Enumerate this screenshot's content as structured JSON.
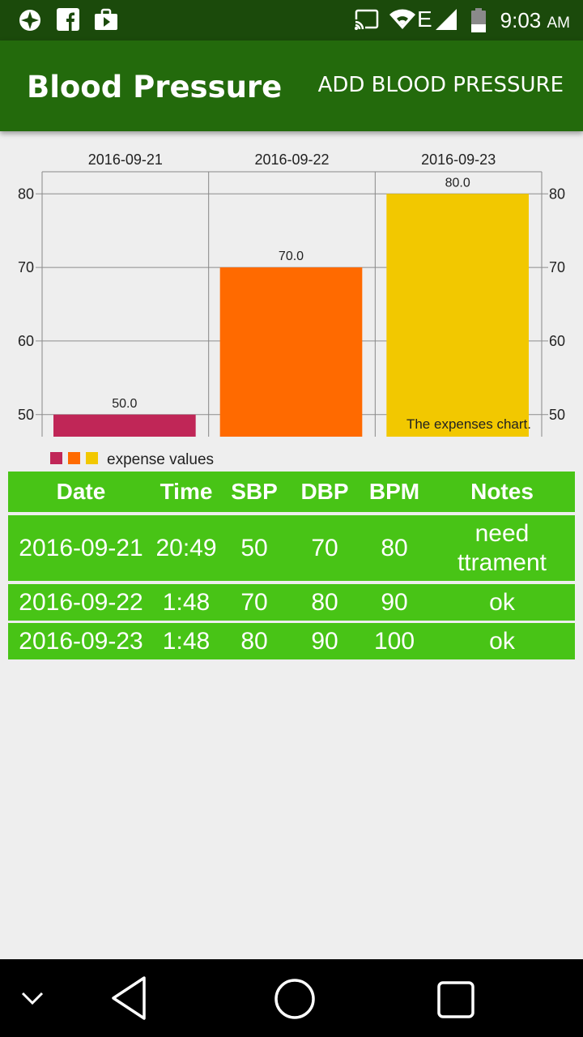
{
  "status_bar": {
    "time": "9:03",
    "ampm": "AM",
    "network": "E"
  },
  "app_bar": {
    "title": "Blood Pressure",
    "action_label": "ADD BLOOD PRESSURE"
  },
  "chart_data": {
    "type": "bar",
    "categories": [
      "2016-09-21",
      "2016-09-22",
      "2016-09-23"
    ],
    "values": [
      50.0,
      70.0,
      80.0
    ],
    "value_labels": [
      "50.0",
      "70.0",
      "80.0"
    ],
    "colors": [
      "#c02657",
      "#ff6a00",
      "#f2c800"
    ],
    "ylim": [
      47,
      83
    ],
    "yticks": [
      "50",
      "60",
      "70",
      "80"
    ],
    "ytick_values": [
      50,
      60,
      70,
      80
    ],
    "description": "The expenses chart.",
    "legend_label": "expense values",
    "grid": true
  },
  "table": {
    "headers": [
      "Date",
      "Time",
      "SBP",
      "DBP",
      "BPM",
      "Notes"
    ],
    "rows": [
      [
        "2016-09-21",
        "20:49",
        "50",
        "70",
        "80",
        "need ttrament"
      ],
      [
        "2016-09-22",
        "1:48",
        "70",
        "80",
        "90",
        "ok"
      ],
      [
        "2016-09-23",
        "1:48",
        "80",
        "90",
        "100",
        "ok"
      ]
    ],
    "row_color": "#48c416"
  },
  "colors": {
    "status_bar": "#1b4a0b",
    "app_bar": "#236a0c",
    "background": "#eeeeee"
  }
}
